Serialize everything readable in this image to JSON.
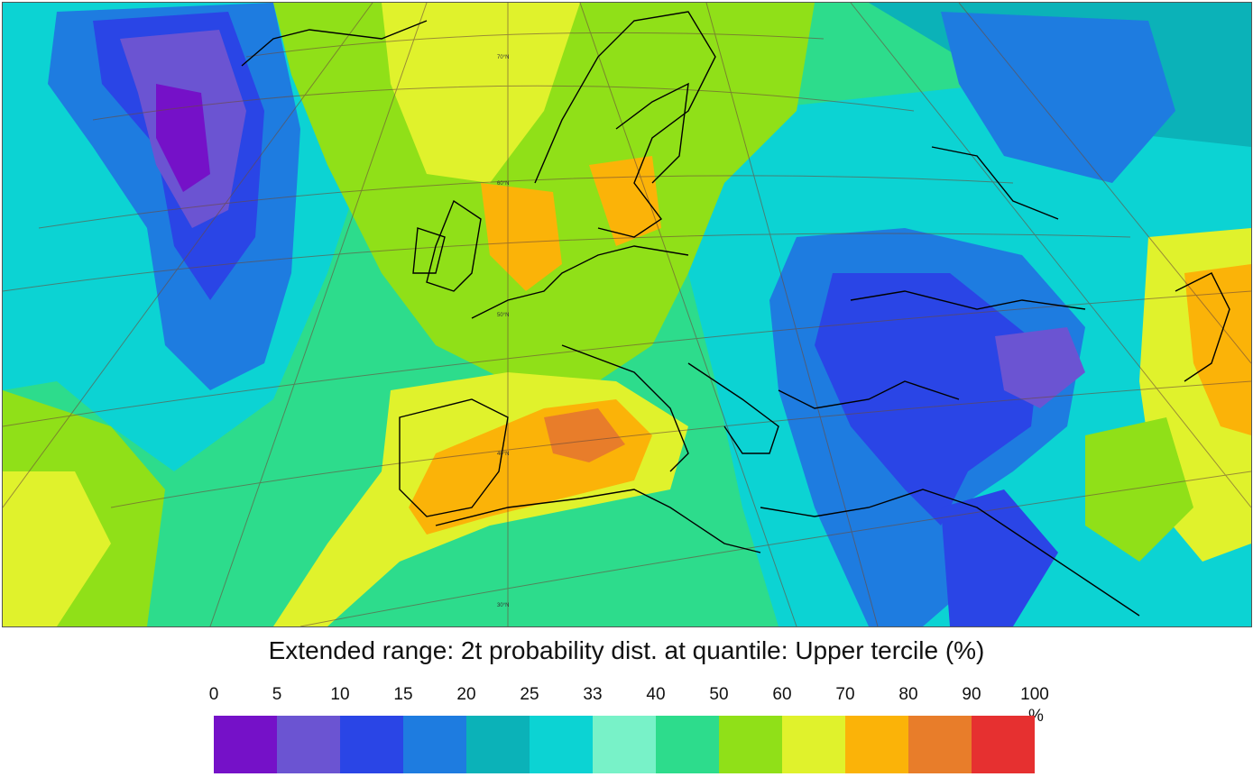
{
  "title": "Extended range: 2t probability dist. at quantile: Upper tercile (%)",
  "map": {
    "region": "Europe",
    "graticule_labels": [
      "70°N",
      "60°N",
      "50°N",
      "40°N",
      "30°N"
    ]
  },
  "legend": {
    "ticks": [
      "0",
      "5",
      "10",
      "15",
      "20",
      "25",
      "33",
      "40",
      "50",
      "60",
      "70",
      "80",
      "90",
      "100"
    ],
    "unit": "%",
    "colors": [
      "#7511c8",
      "#6b54d2",
      "#2a45e6",
      "#1e7ce0",
      "#0bb2b8",
      "#0cd3d3",
      "#78f2c8",
      "#2ddc8c",
      "#90e018",
      "#e0f22c",
      "#fbb308",
      "#e87d2a",
      "#e63030"
    ]
  }
}
